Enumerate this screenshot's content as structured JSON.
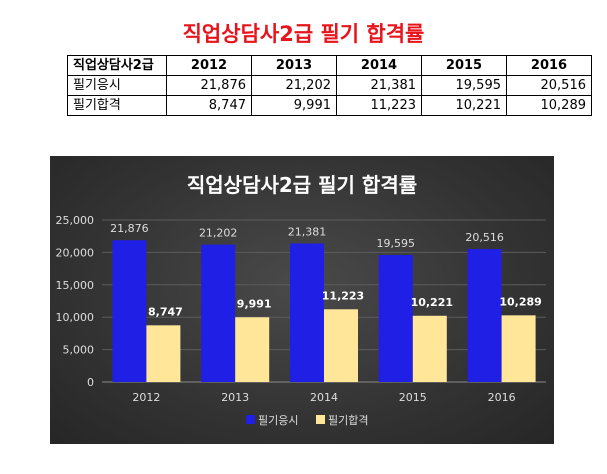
{
  "page_title": "직업상담사2급 필기 합격률",
  "table": {
    "corner": "직업상담사2급",
    "years": [
      "2012",
      "2013",
      "2014",
      "2015",
      "2016"
    ],
    "rows": [
      {
        "label": "필기응시",
        "values": [
          "21,876",
          "21,202",
          "21,381",
          "19,595",
          "20,516"
        ]
      },
      {
        "label": "필기합격",
        "values": [
          "8,747",
          "9,991",
          "11,223",
          "10,221",
          "10,289"
        ]
      }
    ]
  },
  "chart_data": {
    "type": "bar",
    "title": "직업상담사2급 필기 합격률",
    "categories": [
      "2012",
      "2013",
      "2014",
      "2015",
      "2016"
    ],
    "series": [
      {
        "name": "필기응시",
        "values": [
          21876,
          21202,
          21381,
          19595,
          20516
        ],
        "labels": [
          "21,876",
          "21,202",
          "21,381",
          "19,595",
          "20,516"
        ],
        "color": "#1f1fe6"
      },
      {
        "name": "필기합격",
        "values": [
          8747,
          9991,
          11223,
          10221,
          10289
        ],
        "labels": [
          "8,747",
          "9,991",
          "11,223",
          "10,221",
          "10,289"
        ],
        "color": "#ffe699"
      }
    ],
    "yticks": [
      "0",
      "5,000",
      "10,000",
      "15,000",
      "20,000",
      "25,000"
    ],
    "ylim": [
      0,
      25000
    ],
    "legend_position": "bottom",
    "background": "#333333"
  }
}
